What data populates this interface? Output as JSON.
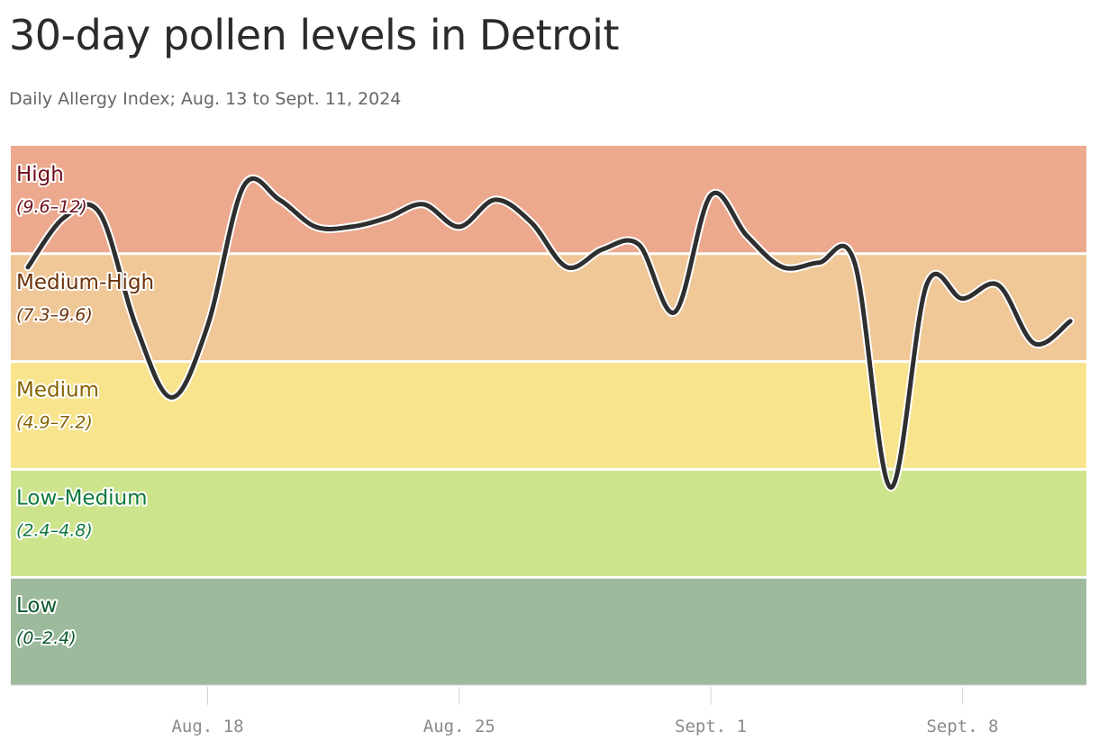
{
  "title": "30-day pollen levels in Detroit",
  "subtitle": "Daily Allergy Index; Aug. 13 to Sept. 11, 2024",
  "chart_data": {
    "type": "line",
    "title": "30-day pollen levels in Detroit",
    "subtitle": "Daily Allergy Index; Aug. 13 to Sept. 11, 2024",
    "xlabel": "",
    "ylabel": "",
    "ylim": [
      0,
      12
    ],
    "grid": false,
    "line_color": "#2f2f2f",
    "bands": [
      {
        "name": "High",
        "range": "(9.6–12)",
        "min": 9.6,
        "max": 12,
        "fill": "#eca98d",
        "text_color": "#6e0f1e"
      },
      {
        "name": "Medium-High",
        "range": "(7.3–9.6)",
        "min": 7.2,
        "max": 9.6,
        "fill": "#f0c797",
        "text_color": "#6b3209"
      },
      {
        "name": "Medium",
        "range": "(4.9–7.2)",
        "min": 4.8,
        "max": 7.2,
        "fill": "#f8e48c",
        "text_color": "#876300"
      },
      {
        "name": "Low-Medium",
        "range": "(2.4–4.8)",
        "min": 2.4,
        "max": 4.8,
        "fill": "#cde38c",
        "text_color": "#0e7a3d"
      },
      {
        "name": "Low",
        "range": "(0–2.4)",
        "min": 0,
        "max": 2.4,
        "fill": "#9dba9d",
        "text_color": "#0c5a2e"
      }
    ],
    "x_ticks": [
      {
        "label": "Aug. 18",
        "date": "2024-08-18"
      },
      {
        "label": "Aug. 25",
        "date": "2024-08-25"
      },
      {
        "label": "Sept. 1",
        "date": "2024-09-01"
      },
      {
        "label": "Sept. 8",
        "date": "2024-09-08"
      }
    ],
    "x": [
      "2024-08-13",
      "2024-08-14",
      "2024-08-15",
      "2024-08-16",
      "2024-08-17",
      "2024-08-18",
      "2024-08-19",
      "2024-08-20",
      "2024-08-21",
      "2024-08-22",
      "2024-08-23",
      "2024-08-24",
      "2024-08-25",
      "2024-08-26",
      "2024-08-27",
      "2024-08-28",
      "2024-08-29",
      "2024-08-30",
      "2024-08-31",
      "2024-09-01",
      "2024-09-02",
      "2024-09-03",
      "2024-09-04",
      "2024-09-05",
      "2024-09-06",
      "2024-09-07",
      "2024-09-08",
      "2024-09-09",
      "2024-09-10",
      "2024-09-11"
    ],
    "series": [
      {
        "values": [
          9.3,
          10.4,
          10.5,
          8.0,
          6.4,
          8.0,
          11.1,
          10.8,
          10.2,
          10.2,
          10.4,
          10.7,
          10.2,
          10.8,
          10.3,
          9.3,
          9.7,
          9.8,
          8.3,
          10.9,
          10.0,
          9.3,
          9.4,
          9.4,
          4.4,
          8.9,
          8.6,
          8.9,
          7.6,
          8.1
        ]
      }
    ]
  }
}
